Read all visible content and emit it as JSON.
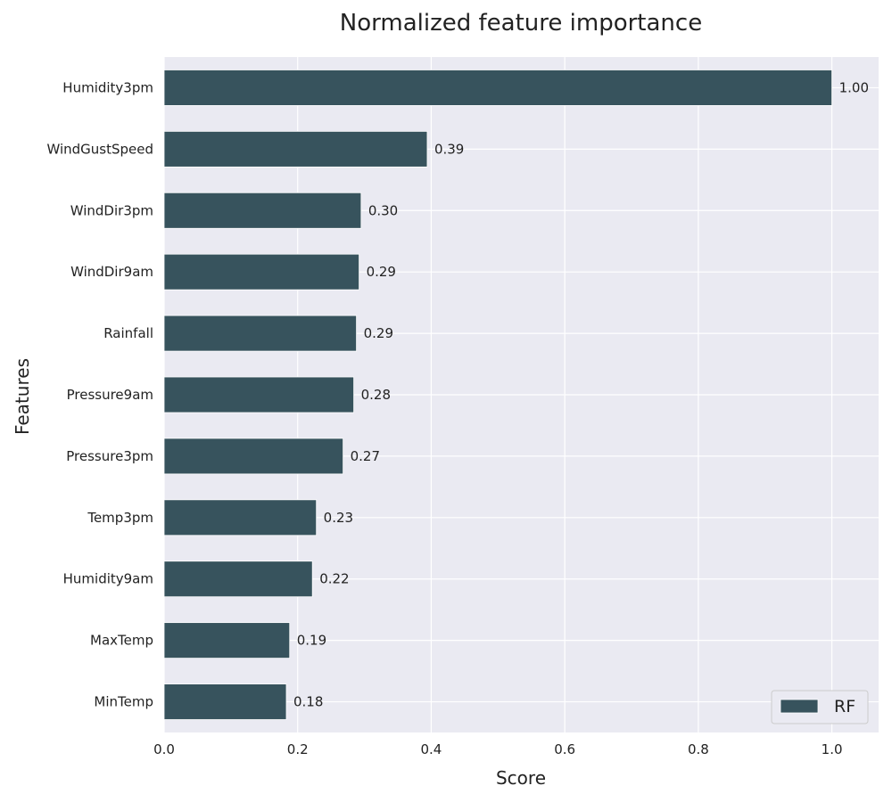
{
  "chart_data": {
    "type": "bar",
    "orientation": "horizontal",
    "title": "Normalized feature importance",
    "xlabel": "Score",
    "ylabel": "Features",
    "categories": [
      "Humidity3pm",
      "WindGustSpeed",
      "WindDir3pm",
      "WindDir9am",
      "Rainfall",
      "Pressure9am",
      "Pressure3pm",
      "Temp3pm",
      "Humidity9am",
      "MaxTemp",
      "MinTemp"
    ],
    "series": [
      {
        "name": "RF",
        "values": [
          1.0,
          0.394,
          0.295,
          0.292,
          0.288,
          0.284,
          0.268,
          0.228,
          0.222,
          0.188,
          0.183
        ],
        "labels": [
          "1.00",
          "0.39",
          "0.30",
          "0.29",
          "0.29",
          "0.28",
          "0.27",
          "0.23",
          "0.22",
          "0.19",
          "0.18"
        ]
      }
    ],
    "xlim": [
      0,
      1.07
    ],
    "xticks": [
      0.0,
      0.2,
      0.4,
      0.6,
      0.8,
      1.0
    ],
    "xtick_labels": [
      "0.0",
      "0.2",
      "0.4",
      "0.6",
      "0.8",
      "1.0"
    ],
    "grid": true,
    "legend": "bottom-right",
    "colors": {
      "bar": "#37535d",
      "plot_background": "#eaeaf2",
      "grid": "#ffffff"
    }
  }
}
